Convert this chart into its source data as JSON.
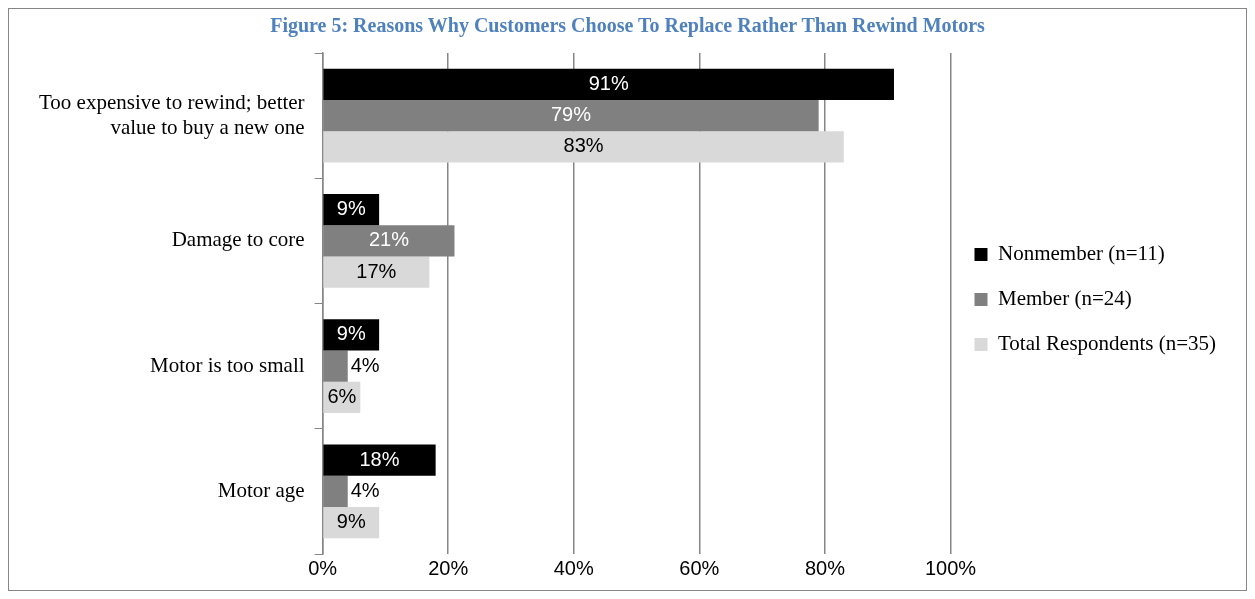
{
  "chart_data": {
    "type": "bar",
    "orientation": "horizontal",
    "title": "Figure 5: Reasons Why Customers Choose To Replace Rather Than Rewind Motors",
    "categories": [
      "Too expensive to rewind; better value to buy a new one",
      "Damage to core",
      "Motor is too small",
      "Motor age"
    ],
    "series": [
      {
        "name": "Nonmember (n=11)",
        "color": "#000000",
        "values": [
          91,
          9,
          9,
          18
        ],
        "value_labels": [
          "91%",
          "9%",
          "9%",
          "18%"
        ]
      },
      {
        "name": "Member (n=24)",
        "color": "#808080",
        "values": [
          79,
          21,
          4,
          4
        ],
        "value_labels": [
          "79%",
          "21%",
          "4%",
          "4%"
        ]
      },
      {
        "name": "Total Respondents (n=35)",
        "color": "#d9d9d9",
        "values": [
          83,
          17,
          6,
          9
        ],
        "value_labels": [
          "83%",
          "17%",
          "6%",
          "9%"
        ]
      }
    ],
    "xlim": [
      0,
      100
    ],
    "xticks": [
      {
        "value": 0,
        "label": "0%"
      },
      {
        "value": 20,
        "label": "20%"
      },
      {
        "value": 40,
        "label": "40%"
      },
      {
        "value": 60,
        "label": "60%"
      },
      {
        "value": 80,
        "label": "80%"
      },
      {
        "value": 100,
        "label": "100%"
      }
    ],
    "grid": "x",
    "legend": "right"
  }
}
